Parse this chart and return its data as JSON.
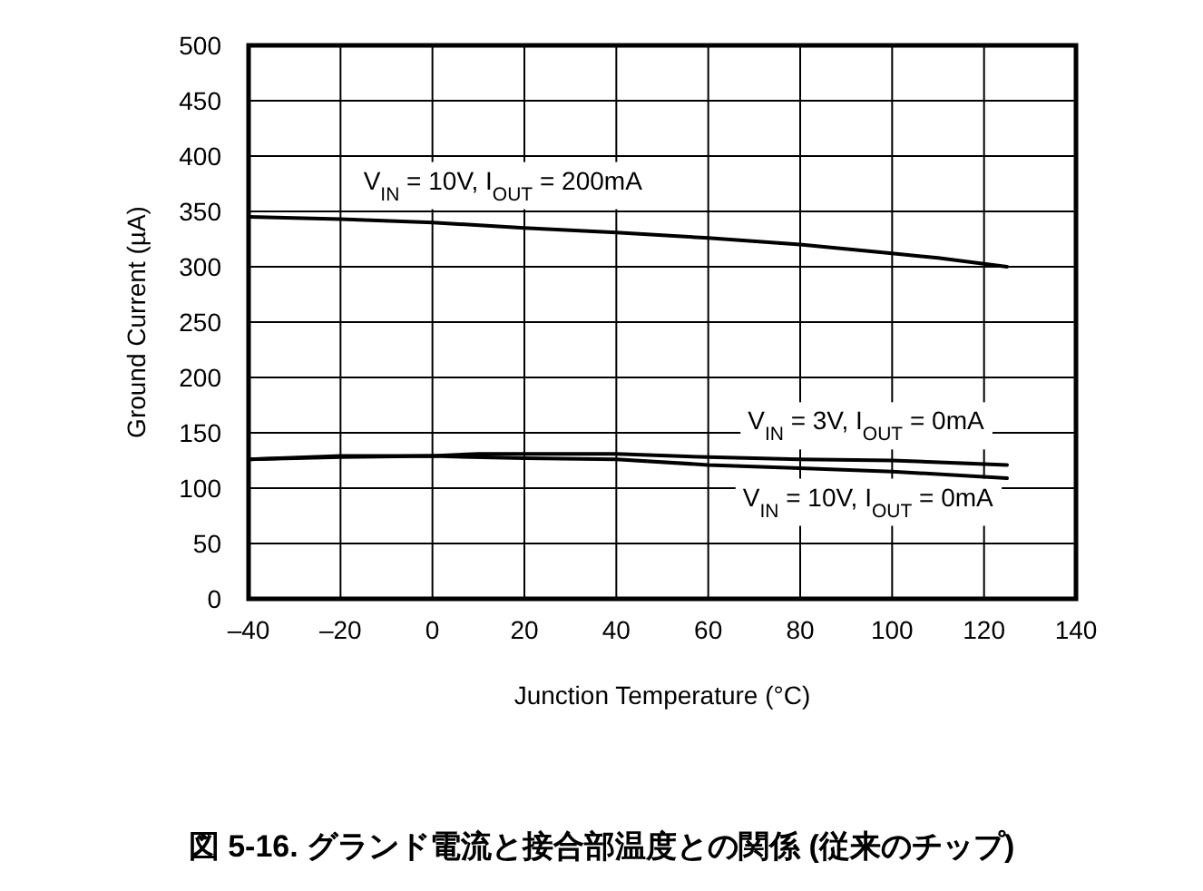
{
  "chart_data": {
    "type": "line",
    "title": "図 5-16. グランド電流と接合部温度との関係 (従来のチップ)",
    "xlabel": "Junction Temperature (°C)",
    "ylabel": "Ground Current (µA)",
    "xlim": [
      -40,
      140
    ],
    "xticks": [
      {
        "value": -40,
        "label": "–40"
      },
      {
        "value": -20,
        "label": "–20"
      },
      0,
      20,
      40,
      60,
      80,
      100,
      120,
      140
    ],
    "ylim": [
      0,
      500
    ],
    "yticks": [
      0,
      50,
      100,
      150,
      200,
      250,
      300,
      350,
      400,
      450,
      500
    ],
    "grid": true,
    "legend": false,
    "series": [
      {
        "name": "V$_{IN}$ = 10V, I$_{OUT}$ = 200mA",
        "color": "#000000",
        "x": [
          -40,
          -20,
          0,
          20,
          40,
          60,
          80,
          100,
          110,
          125
        ],
        "values": [
          345,
          343,
          340,
          335,
          331,
          326,
          320,
          312,
          308,
          300
        ]
      },
      {
        "name": "V$_{IN}$ = 3V, I$_{OUT}$ = 0mA",
        "color": "#000000",
        "x": [
          -40,
          -20,
          0,
          10,
          40,
          60,
          80,
          100,
          125
        ],
        "values": [
          126,
          129,
          129,
          131,
          131,
          128,
          126,
          125,
          121
        ]
      },
      {
        "name": "V$_{IN}$ = 10V, I$_{OUT}$ = 0mA",
        "color": "#000000",
        "x": [
          -40,
          -20,
          0,
          20,
          40,
          60,
          80,
          100,
          125
        ],
        "values": [
          126,
          128,
          129,
          127,
          126,
          121,
          118,
          115,
          109
        ]
      }
    ]
  }
}
